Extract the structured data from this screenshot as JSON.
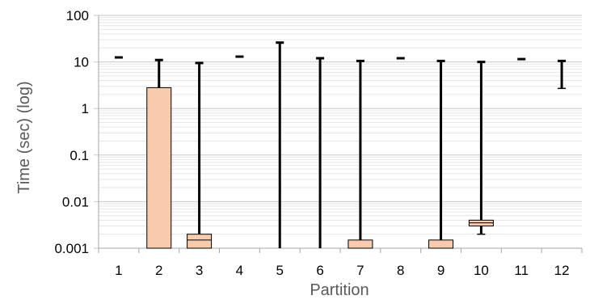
{
  "chart_data": {
    "type": "box",
    "title": "",
    "xlabel": "Partition",
    "ylabel": "Time (sec) (log)",
    "yscale": "log",
    "ylim": [
      0.001,
      100
    ],
    "y_ticks": [
      "0.001",
      "0.01",
      "0.1",
      "1",
      "10",
      "100"
    ],
    "categories": [
      "1",
      "2",
      "3",
      "4",
      "5",
      "6",
      "7",
      "8",
      "9",
      "10",
      "11",
      "12"
    ],
    "boxes": [
      {
        "category": "1",
        "min": 12.5,
        "q1": 12.5,
        "median": 12.5,
        "q3": 12.5,
        "max": 12.5
      },
      {
        "category": "2",
        "min": 0.001,
        "q1": 0.001,
        "median": 0.001,
        "q3": 2.8,
        "max": 11.0
      },
      {
        "category": "3",
        "min": 0.001,
        "q1": 0.001,
        "median": 0.0015,
        "q3": 0.002,
        "max": 9.5
      },
      {
        "category": "4",
        "min": 13.0,
        "q1": 13.0,
        "median": 13.0,
        "q3": 13.0,
        "max": 13.0
      },
      {
        "category": "5",
        "min": 0.001,
        "q1": 0.001,
        "median": 0.001,
        "q3": 0.001,
        "max": 26.0
      },
      {
        "category": "6",
        "min": 0.001,
        "q1": 0.001,
        "median": 0.001,
        "q3": 0.001,
        "max": 12.0
      },
      {
        "category": "7",
        "min": 0.001,
        "q1": 0.001,
        "median": 0.001,
        "q3": 0.0015,
        "max": 10.5
      },
      {
        "category": "8",
        "min": 12.0,
        "q1": 12.0,
        "median": 12.0,
        "q3": 12.0,
        "max": 12.0
      },
      {
        "category": "9",
        "min": 0.001,
        "q1": 0.001,
        "median": 0.001,
        "q3": 0.0015,
        "max": 10.5
      },
      {
        "category": "10",
        "min": 0.002,
        "q1": 0.003,
        "median": 0.0035,
        "q3": 0.004,
        "max": 10.0
      },
      {
        "category": "11",
        "min": 11.5,
        "q1": 11.5,
        "median": 11.5,
        "q3": 11.5,
        "max": 11.5
      },
      {
        "category": "12",
        "min": 2.7,
        "q1": 10.5,
        "median": 10.5,
        "q3": 10.5,
        "max": 10.5
      }
    ],
    "grid": true,
    "legend": "none",
    "colors": {
      "box_fill": "#f8cbad",
      "box_stroke": "#000000",
      "whisker": "#000000",
      "grid_major": "#c8c8c8",
      "grid_minor": "#e6e6e6",
      "axis": "#a6a6a6"
    }
  }
}
